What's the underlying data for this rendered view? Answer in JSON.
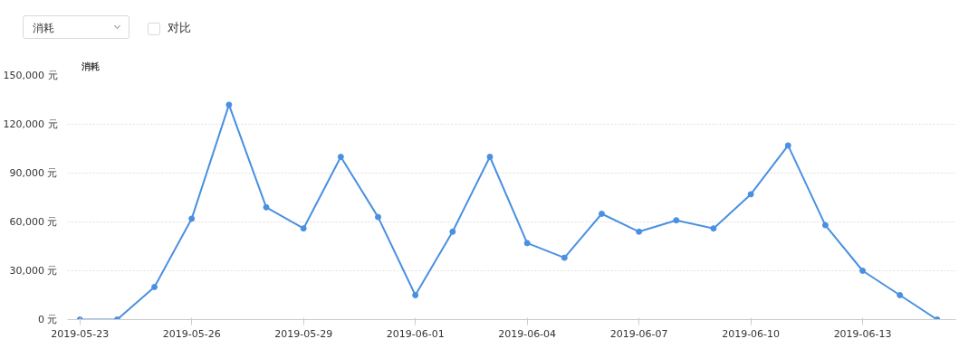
{
  "chart_data": {
    "type": "line",
    "ylabel": "消耗",
    "annotations": [
      "消耗",
      "对比"
    ],
    "x": [
      "2019-05-23",
      "2019-05-24",
      "2019-05-25",
      "2019-05-26",
      "2019-05-27",
      "2019-05-28",
      "2019-05-29",
      "2019-05-30",
      "2019-05-31",
      "2019-06-01",
      "2019-06-02",
      "2019-06-03",
      "2019-06-04",
      "2019-06-05",
      "2019-06-06",
      "2019-06-07",
      "2019-06-08",
      "2019-06-09",
      "2019-06-10",
      "2019-06-11",
      "2019-06-12",
      "2019-06-13",
      "2019-06-14",
      "2019-06-15"
    ],
    "series": [
      {
        "color": "#4a90e2",
        "values": [
          0,
          0,
          20000,
          62000,
          132000,
          69000,
          56000,
          100000,
          63000,
          15000,
          54000,
          100000,
          47000,
          38000,
          65000,
          54000,
          61000,
          56000,
          77000,
          107000,
          58000,
          30000,
          15000,
          0
        ]
      }
    ],
    "xlim": [
      "2019-05-22T16:00",
      "2019-06-15T12:00"
    ],
    "xticks": [
      "2019-05-23",
      "2019-05-26",
      "2019-05-29",
      "2019-06-01",
      "2019-06-04",
      "2019-06-07",
      "2019-06-10",
      "2019-06-13"
    ],
    "ylim": [
      0,
      150000
    ],
    "yticks": [
      {
        "value": 0,
        "label": "0 元"
      },
      {
        "value": 30000,
        "label": "30,000 元"
      },
      {
        "value": 60000,
        "label": "60,000 元"
      },
      {
        "value": 90000,
        "label": "90,000 元"
      },
      {
        "value": 120000,
        "label": "120,000 元"
      },
      {
        "value": 150000,
        "label": "150,000 元"
      }
    ],
    "grid": "y",
    "marker": "circle",
    "line_style": "solid"
  }
}
